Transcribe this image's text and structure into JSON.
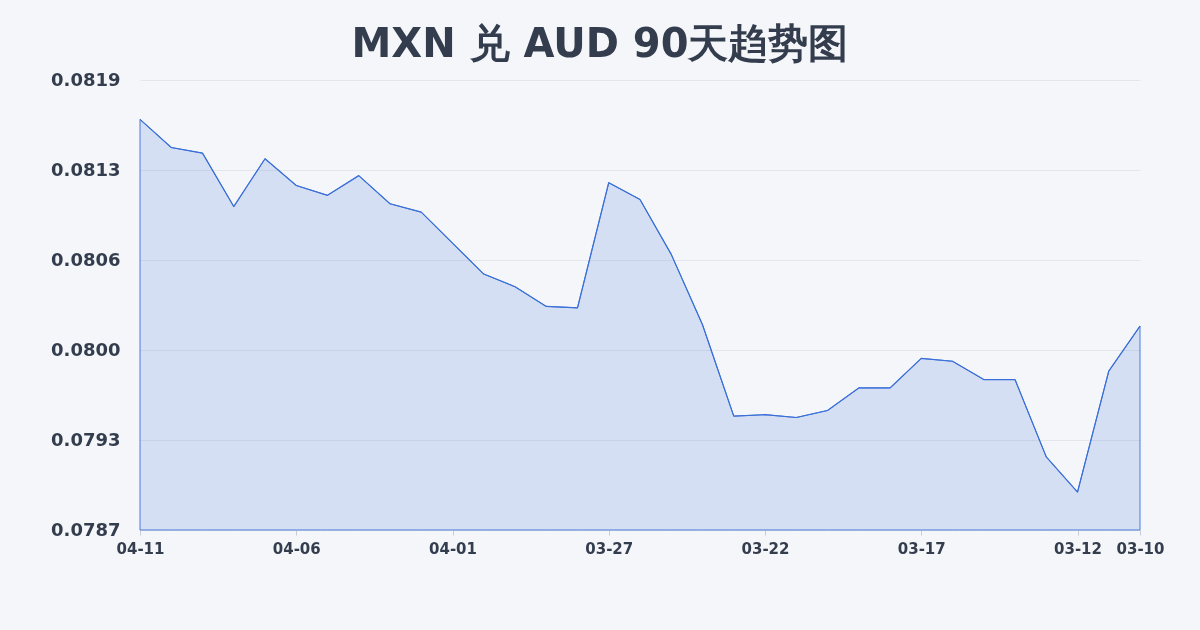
{
  "chart_data": {
    "type": "area",
    "title": "MXN 兑 AUD 90天趋势图",
    "categories": [
      "04-11",
      null,
      null,
      null,
      null,
      "04-06",
      null,
      null,
      null,
      null,
      "04-01",
      null,
      null,
      null,
      null,
      "03-27",
      null,
      null,
      null,
      null,
      "03-22",
      null,
      null,
      null,
      null,
      "03-17",
      null,
      null,
      null,
      null,
      "03-12",
      null,
      "03-10"
    ],
    "series": [
      {
        "color": "#3a6fd8",
        "values": [
          0.08162,
          0.08142,
          0.08138,
          0.081,
          0.08134,
          0.08115,
          0.08108,
          0.08122,
          0.08102,
          0.08096,
          0.08074,
          0.08052,
          0.08043,
          0.08029,
          0.08028,
          0.08117,
          0.08105,
          0.08066,
          0.08016,
          0.07951,
          0.07952,
          0.0795,
          0.07955,
          0.07971,
          0.07971,
          0.07992,
          0.0799,
          0.07977,
          0.07977,
          0.07922,
          0.07897,
          0.07983,
          0.08015
        ]
      }
    ],
    "ylim": [
      0.0787,
      0.0819
    ],
    "yticks": [
      0.0787,
      {
        "value": 0.07934,
        "label": "0.0793"
      },
      {
        "value": 0.07998,
        "label": "0.0800"
      },
      {
        "value": 0.08062,
        "label": "0.0806"
      },
      {
        "value": 0.08126,
        "label": "0.0813"
      },
      0.0819
    ],
    "grid": "y"
  }
}
